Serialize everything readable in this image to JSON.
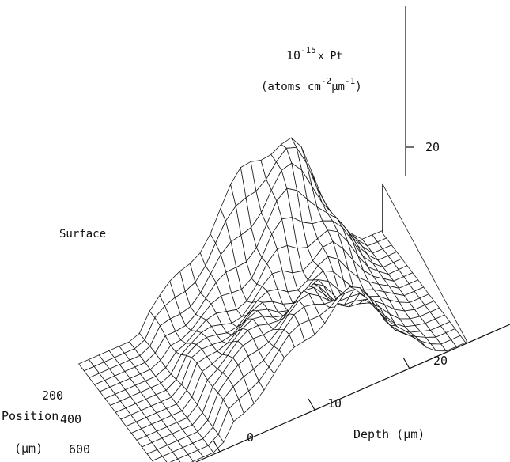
{
  "chart_data": {
    "type": "surface",
    "zlabel": {
      "line1": {
        "base": "10",
        "exp": "-15",
        "rest": "x Pt"
      },
      "line2": {
        "open": "(atoms cm",
        "exp1": "-2",
        "mid": "μm",
        "exp2": "-1",
        "close": ")"
      }
    },
    "z_ticks": [
      "20"
    ],
    "annotation": "Surface",
    "position_axis": {
      "label": "Position",
      "unit": "(μm)",
      "ticks": [
        "200",
        "400",
        "600"
      ]
    },
    "depth_axis": {
      "label": "Depth (μm)",
      "ticks": [
        "0",
        "10",
        "20"
      ]
    },
    "depth_range": [
      -6,
      26
    ],
    "position_range": [
      0,
      700
    ],
    "z_range": [
      0,
      22
    ],
    "ridge_peak_depth": [
      10,
      17
    ],
    "approx_max_value": 18
  }
}
